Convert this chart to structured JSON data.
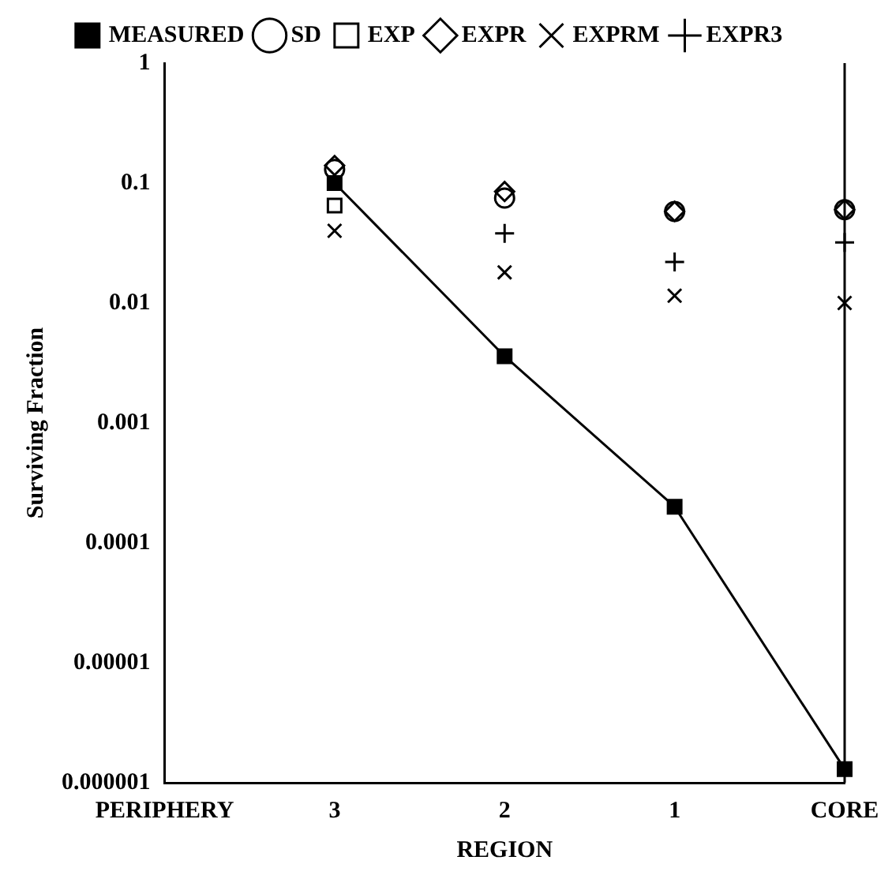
{
  "chart_data": {
    "type": "scatter",
    "xlabel": "REGION",
    "ylabel": "Surviving Fraction",
    "categories": [
      "PERIPHERY",
      "3",
      "2",
      "1",
      "CORE"
    ],
    "series": [
      {
        "name": "MEASURED",
        "type": "line",
        "marker": "square",
        "color": "#000000",
        "values": [
          null,
          0.1,
          0.0036,
          0.0002,
          1.3e-06
        ]
      },
      {
        "name": "SD",
        "marker": "circle",
        "color": "#000000",
        "values": [
          null,
          0.13,
          0.075,
          0.058,
          0.06
        ]
      },
      {
        "name": "EXP",
        "marker": "square",
        "color": "#000000",
        "values": [
          null,
          0.065,
          null,
          null,
          null
        ]
      },
      {
        "name": "EXPR",
        "marker": "diamond",
        "color": "#000000",
        "values": [
          null,
          0.14,
          0.085,
          0.058,
          0.06
        ]
      },
      {
        "name": "EXPRM",
        "marker": "x",
        "color": "#000000",
        "values": [
          null,
          0.04,
          0.018,
          0.0115,
          0.01
        ]
      },
      {
        "name": "EXPR3",
        "marker": "cross",
        "color": "#000000",
        "values": [
          null,
          null,
          0.038,
          0.022,
          0.032
        ]
      }
    ],
    "log": "y",
    "ylim": [
      1e-06,
      1
    ],
    "yticks": [
      {
        "value": 1e-06,
        "label": "0.000001"
      },
      {
        "value": 1e-05,
        "label": "0.00001"
      },
      0.0001,
      0.001,
      0.01,
      0.1,
      1
    ],
    "grid": false,
    "legend": "top"
  }
}
